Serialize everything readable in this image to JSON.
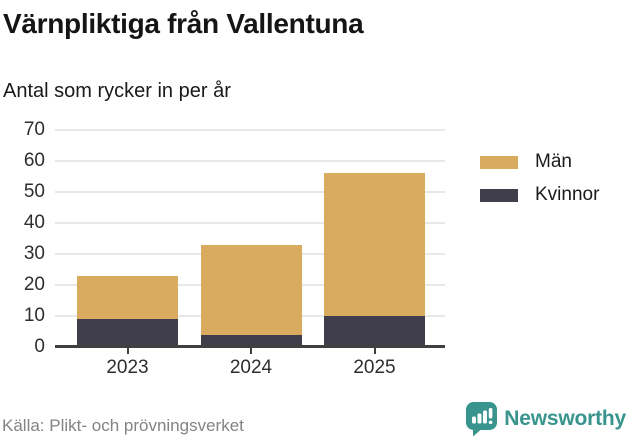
{
  "title": "Värnpliktiga från Vallentuna",
  "subtitle": "Antal som rycker in per år",
  "source": "Källa: Plikt- och prövningsverket",
  "brand": {
    "name": "Newsworthy",
    "color": "#38948c",
    "icon": "bar-chart-speech-bubble-icon"
  },
  "colors": {
    "man": "#d9ab5e",
    "kvinnor": "#413e4c",
    "gridline": "#e8e8e8",
    "axis": "#3f3f3f",
    "text": "#2e2e2e",
    "source_text": "#838383"
  },
  "legend": [
    {
      "label": "Män",
      "color": "#d9ab5e"
    },
    {
      "label": "Kvinnor",
      "color": "#413e4c"
    }
  ],
  "chart_data": {
    "type": "bar",
    "stacked": true,
    "title": "Värnpliktiga från Vallentuna",
    "subtitle": "Antal som rycker in per år",
    "categories": [
      "2023",
      "2024",
      "2025"
    ],
    "series": [
      {
        "name": "Män",
        "color": "#d9ab5e",
        "values": [
          14,
          29,
          46
        ]
      },
      {
        "name": "Kvinnor",
        "color": "#413e4c",
        "values": [
          9,
          4,
          10
        ]
      }
    ],
    "stack_order_bottom_to_top": [
      "Kvinnor",
      "Män"
    ],
    "xlabel": "",
    "ylabel": "",
    "ylim": [
      0,
      70
    ],
    "yticks": [
      0,
      10,
      20,
      30,
      40,
      50,
      60,
      70
    ],
    "grid": true,
    "legend_position": "right-top",
    "source": "Källa: Plikt- och prövningsverket"
  }
}
